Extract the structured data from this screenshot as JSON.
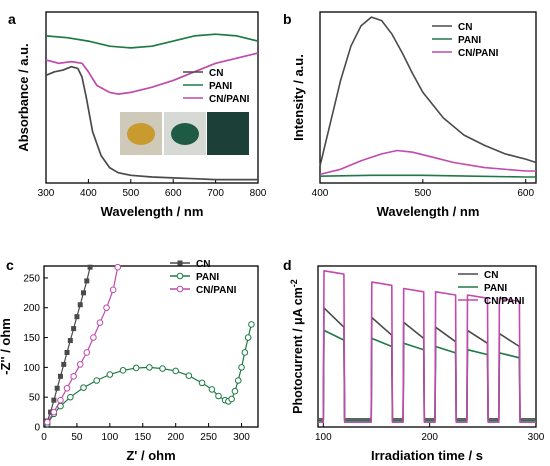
{
  "colors": {
    "CN": "#4a4a4a",
    "PANI": "#1e7a45",
    "CN/PANI": "#c04aad",
    "axis": "#000000"
  },
  "chart_data": [
    {
      "panel": "a",
      "type": "line",
      "xlabel": "Wavelength / nm",
      "ylabel": "Absorbance / a.u.",
      "xlim": [
        300,
        800
      ],
      "ylim": [
        0,
        1.0
      ],
      "xticks": [
        "300",
        "400",
        "500",
        "600",
        "700",
        "800"
      ],
      "legend_position": "middle-right",
      "inset_photos": [
        "CN powder (yellow)",
        "PANI powder (dark green)",
        "CN/PANI powder (dark teal)"
      ],
      "series": [
        {
          "name": "CN",
          "x": [
            300,
            320,
            340,
            360,
            375,
            385,
            395,
            410,
            430,
            450,
            470,
            500,
            550,
            600,
            650,
            700,
            750,
            800
          ],
          "y": [
            0.63,
            0.65,
            0.66,
            0.68,
            0.67,
            0.62,
            0.5,
            0.3,
            0.16,
            0.09,
            0.06,
            0.045,
            0.035,
            0.03,
            0.025,
            0.02,
            0.02,
            0.02
          ]
        },
        {
          "name": "PANI",
          "x": [
            300,
            350,
            400,
            450,
            500,
            550,
            600,
            650,
            700,
            750,
            800
          ],
          "y": [
            0.86,
            0.85,
            0.83,
            0.8,
            0.79,
            0.8,
            0.83,
            0.86,
            0.87,
            0.86,
            0.83
          ]
        },
        {
          "name": "CN/PANI",
          "x": [
            300,
            330,
            360,
            385,
            400,
            420,
            450,
            470,
            500,
            550,
            600,
            650,
            700,
            750,
            800
          ],
          "y": [
            0.72,
            0.7,
            0.71,
            0.7,
            0.65,
            0.57,
            0.53,
            0.52,
            0.53,
            0.56,
            0.6,
            0.65,
            0.7,
            0.73,
            0.76
          ]
        }
      ]
    },
    {
      "panel": "b",
      "type": "line",
      "xlabel": "Wavelength / nm",
      "ylabel": "Intensity / a.u.",
      "xlim": [
        400,
        610
      ],
      "ylim": [
        0,
        1.0
      ],
      "xticks": [
        "400",
        "500",
        "600"
      ],
      "legend_position": "top-right",
      "series": [
        {
          "name": "CN",
          "x": [
            400,
            410,
            420,
            430,
            440,
            450,
            460,
            470,
            480,
            490,
            500,
            520,
            540,
            560,
            580,
            600,
            610
          ],
          "y": [
            0.1,
            0.35,
            0.6,
            0.8,
            0.92,
            0.97,
            0.95,
            0.87,
            0.76,
            0.64,
            0.53,
            0.38,
            0.28,
            0.22,
            0.17,
            0.14,
            0.12
          ]
        },
        {
          "name": "PANI",
          "x": [
            400,
            450,
            500,
            550,
            600,
            610
          ],
          "y": [
            0.04,
            0.045,
            0.045,
            0.04,
            0.035,
            0.035
          ]
        },
        {
          "name": "CN/PANI",
          "x": [
            400,
            420,
            440,
            460,
            475,
            490,
            510,
            530,
            560,
            600,
            610
          ],
          "y": [
            0.05,
            0.08,
            0.13,
            0.17,
            0.19,
            0.18,
            0.15,
            0.12,
            0.09,
            0.07,
            0.07
          ]
        }
      ]
    },
    {
      "panel": "c",
      "type": "scatter",
      "xlabel": "Z' / ohm",
      "ylabel": "-Z'' / ohm",
      "xlim": [
        0,
        325
      ],
      "ylim": [
        0,
        270
      ],
      "xticks": [
        "0",
        "50",
        "100",
        "150",
        "200",
        "250",
        "300"
      ],
      "yticks": [
        "0",
        "50",
        "100",
        "150",
        "200",
        "250"
      ],
      "legend_position": "top-right",
      "series": [
        {
          "name": "CN",
          "marker": "square",
          "x": [
            5,
            10,
            15,
            20,
            25,
            30,
            35,
            40,
            45,
            50,
            55,
            60,
            65,
            70
          ],
          "y": [
            10,
            25,
            45,
            65,
            85,
            105,
            125,
            145,
            165,
            185,
            205,
            225,
            245,
            268
          ]
        },
        {
          "name": "PANI",
          "marker": "circle",
          "x": [
            5,
            15,
            25,
            40,
            60,
            80,
            100,
            120,
            140,
            160,
            180,
            200,
            220,
            240,
            255,
            265,
            275,
            280,
            285,
            290,
            295,
            300,
            305,
            310,
            315
          ],
          "y": [
            5,
            22,
            35,
            50,
            66,
            78,
            88,
            95,
            99,
            100,
            98,
            94,
            86,
            74,
            63,
            52,
            45,
            43,
            47,
            60,
            78,
            100,
            125,
            150,
            172
          ]
        },
        {
          "name": "CN/PANI",
          "marker": "circle",
          "x": [
            5,
            15,
            25,
            35,
            45,
            55,
            65,
            75,
            85,
            95,
            105,
            112
          ],
          "y": [
            8,
            25,
            45,
            65,
            85,
            105,
            125,
            150,
            175,
            200,
            230,
            268
          ]
        }
      ]
    },
    {
      "panel": "d",
      "type": "line",
      "xlabel": "Irradiation time / s",
      "ylabel": "Photocurrent / μA cm⁻²",
      "ylabel_parts": [
        "Photocurrent / μA cm",
        "-2"
      ],
      "xlim": [
        95,
        300
      ],
      "ylim": [
        0,
        1.0
      ],
      "xticks": [
        "100",
        "200",
        "300"
      ],
      "legend_position": "top-right",
      "on_intervals": [
        [
          100,
          120
        ],
        [
          145,
          165
        ],
        [
          175,
          195
        ],
        [
          205,
          225
        ],
        [
          235,
          255
        ],
        [
          265,
          285
        ]
      ],
      "series": [
        {
          "name": "CN",
          "base": 0.05,
          "on_start": [
            0.74,
            0.68,
            0.65,
            0.62,
            0.6,
            0.58
          ],
          "on_end": [
            0.62,
            0.57,
            0.55,
            0.53,
            0.52,
            0.5
          ]
        },
        {
          "name": "PANI",
          "base": 0.04,
          "on_start": [
            0.6,
            0.55,
            0.52,
            0.5,
            0.48,
            0.46
          ],
          "on_end": [
            0.54,
            0.5,
            0.48,
            0.46,
            0.45,
            0.43
          ]
        },
        {
          "name": "CN/PANI",
          "base": 0.03,
          "on_start": [
            0.97,
            0.9,
            0.86,
            0.84,
            0.82,
            0.8
          ],
          "on_end": [
            0.95,
            0.88,
            0.84,
            0.82,
            0.8,
            0.78
          ]
        }
      ]
    }
  ]
}
